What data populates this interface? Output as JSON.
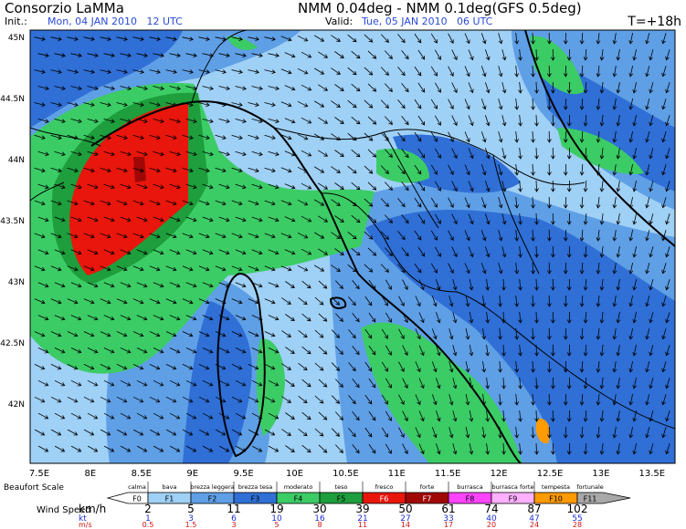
{
  "header": {
    "title": "Consorzio LaMMa",
    "init_label": "Init.:",
    "init": "Mon, 04 JAN 2010   12 UTC",
    "model": "NMM 0.04deg - NMM 0.1deg(GFS 0.5deg)",
    "valid_label": "Valid:",
    "valid": "Tue, 05 JAN 2010   06 UTC",
    "lead": "T=+18h"
  },
  "map": {
    "lat_labels": [
      "45N",
      "44.5N",
      "44N",
      "43.5N",
      "43N",
      "42.5N",
      "42N"
    ],
    "lon_labels": [
      "7.5E",
      "8E",
      "8.5E",
      "9E",
      "9.5E",
      "10E",
      "10.5E",
      "11E",
      "11.5E",
      "12E",
      "12.5E",
      "13E",
      "13.5E"
    ]
  },
  "legend": {
    "title": "Beaufort Scale",
    "classes": [
      {
        "name": "calma",
        "code": "F0",
        "color": "#ffffff"
      },
      {
        "name": "bava",
        "code": "F1",
        "color": "#9fd0f5"
      },
      {
        "name": "brezza leggera",
        "code": "F2",
        "color": "#5f9fe6"
      },
      {
        "name": "brezza tesa",
        "code": "F3",
        "color": "#2f6fd6"
      },
      {
        "name": "moderato",
        "code": "F4",
        "color": "#3ccc66"
      },
      {
        "name": "teso",
        "code": "F5",
        "color": "#1e9e3c"
      },
      {
        "name": "fresco",
        "code": "F6",
        "color": "#e8160c"
      },
      {
        "name": "forte",
        "code": "F7",
        "color": "#a00808"
      },
      {
        "name": "burrasca",
        "code": "F8",
        "color": "#ff44ff"
      },
      {
        "name": "burrasca forte",
        "code": "F9",
        "color": "#ffb0ff"
      },
      {
        "name": "tempesta",
        "code": "F10",
        "color": "#ff9a00"
      },
      {
        "name": "fortunale",
        "code": "F11",
        "color": "#a8a8a8"
      }
    ],
    "speed_label": "Wind Speed",
    "units": [
      {
        "unit": "km/h",
        "color": "#000000",
        "values": [
          "2",
          "5",
          "11",
          "19",
          "30",
          "39",
          "50",
          "61",
          "74",
          "87",
          "102"
        ]
      },
      {
        "unit": "kt",
        "color": "#1f2fd0",
        "values": [
          "1",
          "3",
          "6",
          "10",
          "16",
          "21",
          "27",
          "33",
          "40",
          "47",
          "55"
        ]
      },
      {
        "unit": "m/s",
        "color": "#d01010",
        "values": [
          "0.5",
          "1.5",
          "3",
          "5",
          "8",
          "11",
          "14",
          "17",
          "20",
          "24",
          "28"
        ]
      }
    ]
  }
}
